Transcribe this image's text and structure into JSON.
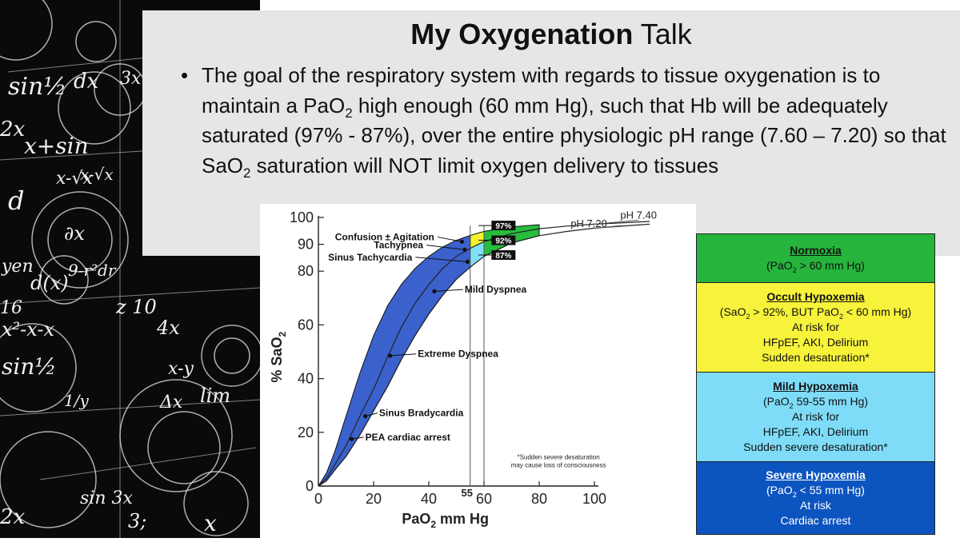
{
  "slide": {
    "title_bold": "My Oxygenation",
    "title_rest": " Talk",
    "bullet_symbol": "•",
    "bullet": {
      "p1": "The goal of the respiratory system with regards to tissue oxygenation is to maintain a PaO",
      "p2": " high enough (60 mm Hg), such that Hb will be adequately saturated (97% - 87%), over the entire physiologic pH range (7.60 – 7.20) so that SaO",
      "p3": " saturation will NOT limit oxygen delivery to tissues",
      "sub": "2"
    }
  },
  "chalkboard": {
    "glyphs": [
      "sin½",
      "dx",
      "3x",
      "2x",
      "x+sin",
      "x-√x",
      "x-√x",
      "d",
      "∂x",
      "yen",
      "d(x)",
      "9-r²dr",
      "16",
      "z 10",
      "4x",
      "x²-x-x",
      "sin½",
      "x-y",
      "lim",
      "Δx",
      "1/y",
      "sin 3x",
      "2x",
      "3;",
      "x"
    ]
  },
  "colors": {
    "band_blue": "#3b61cc",
    "band_yellow": "#f6f12e",
    "band_cyan": "#7fe0f5",
    "band_green": "#27bd3d",
    "normoxia": "#26b43c",
    "occult": "#f7f33a",
    "mild": "#7fdcf8",
    "severe": "#0c55c0"
  },
  "chart_data": {
    "type": "line",
    "ylabel": "% SaO2",
    "ylabel_main": "% SaO",
    "ylabel_sub": "2",
    "xlabel": "PaO2 mm Hg",
    "xlabel_main": "PaO",
    "xlabel_sub": "2",
    "xlabel_tail": " mm Hg",
    "xlim": [
      0,
      100
    ],
    "ylim": [
      0,
      100
    ],
    "x_ticks": [
      "0",
      "20",
      "40",
      "60",
      "80",
      "100"
    ],
    "x_tick_55": "55",
    "y_ticks": [
      "0",
      "20",
      "40",
      "60",
      "80",
      "90",
      "100"
    ],
    "reference_lines_x": [
      55,
      60
    ],
    "series": [
      {
        "name": "pH 7.40",
        "x": [
          0,
          3,
          6,
          10,
          15,
          20,
          25,
          30,
          35,
          40,
          45,
          50,
          55,
          60,
          70,
          80,
          90,
          100,
          120
        ],
        "y": [
          0,
          3,
          8,
          15,
          26,
          36,
          48,
          59,
          68,
          75,
          81,
          85.5,
          88.5,
          91,
          94,
          95.8,
          96.8,
          97.5,
          98.5
        ]
      },
      {
        "name": "pH 7.20",
        "x": [
          0,
          3,
          6,
          10,
          15,
          20,
          25,
          30,
          35,
          40,
          45,
          50,
          55,
          60,
          70,
          80,
          90,
          100,
          120
        ],
        "y": [
          0,
          2,
          6,
          11,
          19,
          28,
          37,
          47,
          56,
          64,
          71,
          77,
          81.5,
          85.5,
          90.5,
          93.2,
          94.8,
          96,
          97.5
        ]
      },
      {
        "name": "upper band",
        "x": [
          0,
          3,
          6,
          10,
          15,
          20,
          25,
          30,
          35,
          40,
          45,
          50,
          55,
          60,
          70,
          80
        ],
        "y": [
          0,
          5,
          13,
          26,
          42,
          56,
          67,
          75,
          81,
          85.5,
          89,
          91.5,
          93.3,
          94.8,
          96.5,
          97.3
        ]
      }
    ],
    "curve_labels": [
      {
        "text": "pH 7.40",
        "x": 116,
        "y": 99.5
      },
      {
        "text": "pH 7.20",
        "x": 98,
        "y": 96.5
      }
    ],
    "annotations": [
      {
        "text": "Confusion ± Agitation",
        "x": 52,
        "y": 91,
        "tx": 42,
        "ty": 91.5
      },
      {
        "text": "Tachypnea",
        "x": 53,
        "y": 88,
        "tx": 38,
        "ty": 88.5
      },
      {
        "text": "Sinus Tachycardia",
        "x": 54,
        "y": 83.5,
        "tx": 34,
        "ty": 84
      },
      {
        "text": "Mild Dyspnea",
        "x": 42,
        "y": 72.5,
        "tx": 53,
        "ty": 72
      },
      {
        "text": "Extreme Dyspnea",
        "x": 26,
        "y": 48.5,
        "tx": 36,
        "ty": 48
      },
      {
        "text": "Sinus Bradycardia",
        "x": 17,
        "y": 26,
        "tx": 22,
        "ty": 26
      },
      {
        "text": "PEA cardiac arrest",
        "x": 12,
        "y": 17.5,
        "tx": 17,
        "ty": 17
      }
    ],
    "boxes": [
      {
        "text": "97%",
        "x": 63,
        "y": 97
      },
      {
        "text": "92%",
        "x": 63,
        "y": 91.5
      },
      {
        "text": "87%",
        "x": 63,
        "y": 86
      }
    ],
    "footnote_line1": "*Sudden severe desaturation",
    "footnote_line2": "may cause loss of consciousness"
  },
  "legend": {
    "normoxia": {
      "heading": "Normoxia",
      "l1a": "(PaO",
      "l1b": " > 60 mm Hg)",
      "sub": "2"
    },
    "occult": {
      "heading": "Occult Hypoxemia",
      "l1a": "(SaO",
      "l1b": " > 92%,  BUT PaO",
      "l1c": " < 60 mm Hg)",
      "l2": "At risk for",
      "l3": "HFpEF, AKI, Delirium",
      "l4": "Sudden desaturation*",
      "sub": "2"
    },
    "mild": {
      "heading": "Mild Hypoxemia",
      "l1a": "(PaO",
      "l1b": " 59-55 mm Hg)",
      "l2": "At risk for",
      "l3": "HFpEF, AKI, Delirium",
      "l4": "Sudden severe desaturation*",
      "sub": "2"
    },
    "severe": {
      "heading": "Severe Hypoxemia",
      "l1a": "(PaO",
      "l1b": " < 55 mm Hg)",
      "l2": "At risk",
      "l3": "Cardiac arrest",
      "sub": "2"
    }
  }
}
